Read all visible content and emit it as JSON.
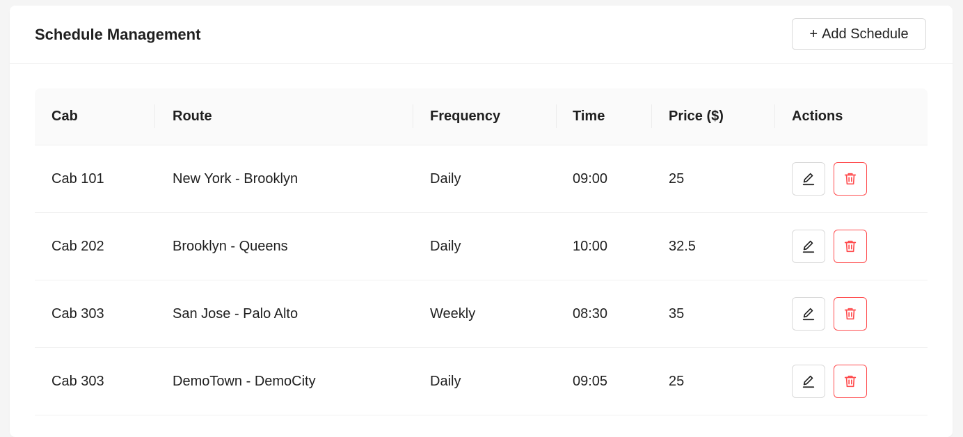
{
  "header": {
    "title": "Schedule Management",
    "add_button_plus": "+",
    "add_button_label": "Add Schedule"
  },
  "table": {
    "columns": [
      "Cab",
      "Route",
      "Frequency",
      "Time",
      "Price ($)",
      "Actions"
    ],
    "rows": [
      {
        "cab": "Cab 101",
        "route": "New York - Brooklyn",
        "frequency": "Daily",
        "time": "09:00",
        "price": "25"
      },
      {
        "cab": "Cab 202",
        "route": "Brooklyn - Queens",
        "frequency": "Daily",
        "time": "10:00",
        "price": "32.5"
      },
      {
        "cab": "Cab 303",
        "route": "San Jose - Palo Alto",
        "frequency": "Weekly",
        "time": "08:30",
        "price": "35"
      },
      {
        "cab": "Cab 303",
        "route": "DemoTown - DemoCity",
        "frequency": "Daily",
        "time": "09:05",
        "price": "25"
      }
    ]
  },
  "icons": {
    "edit": "edit-icon",
    "delete": "delete-icon"
  },
  "colors": {
    "danger": "#ff4d4f",
    "border": "#d9d9d9",
    "header_bg": "#fafafa"
  }
}
